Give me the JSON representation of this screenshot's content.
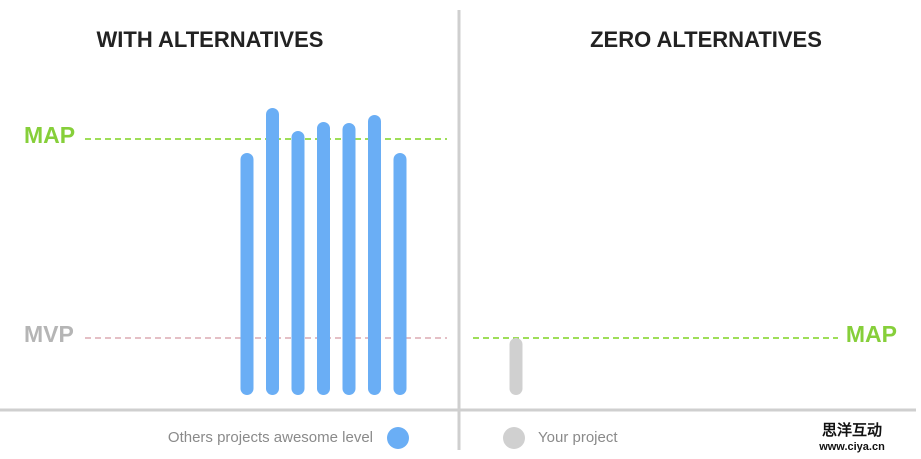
{
  "chart_data": [
    {
      "type": "bar",
      "title": "WITH ALTERNATIVES",
      "ylim": [
        0,
        300
      ],
      "series": [
        {
          "name": "Others projects awesome level",
          "color": "#6aaef5",
          "values": [
            242,
            287,
            264,
            273,
            272,
            280,
            242
          ]
        }
      ],
      "reference_lines": [
        {
          "label": "MAP",
          "value": 256,
          "color": "#7ed321",
          "label_color": "#86cf3a"
        },
        {
          "label": "MVP",
          "value": 57,
          "color": "#dcaab2",
          "label_color": "#b5b5b5"
        }
      ]
    },
    {
      "type": "bar",
      "title": "ZERO ALTERNATIVES",
      "ylim": [
        0,
        300
      ],
      "series": [
        {
          "name": "Your project",
          "color": "#d0d0d0",
          "values": [
            57
          ]
        }
      ],
      "reference_lines": [
        {
          "label": "MAP",
          "value": 57,
          "color": "#7ed321",
          "label_color": "#86cf3a"
        }
      ]
    }
  ],
  "watermark": {
    "name": "思洋互动",
    "url": "www.ciya.cn"
  }
}
